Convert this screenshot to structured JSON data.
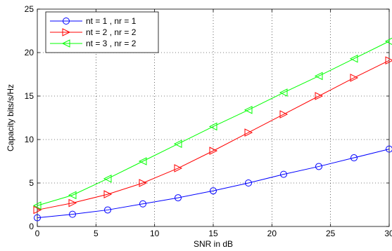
{
  "chart_data": {
    "type": "line",
    "title": "",
    "xlabel": "SNR in dB",
    "ylabel": "Capacity bits/s/Hz",
    "xlim": [
      0,
      30
    ],
    "ylim": [
      0,
      25
    ],
    "xticks": [
      0,
      5,
      10,
      15,
      20,
      25,
      30
    ],
    "yticks": [
      0,
      5,
      10,
      15,
      20,
      25
    ],
    "grid": true,
    "legend_position": "top-left",
    "x": [
      0,
      3,
      6,
      9,
      12,
      15,
      18,
      21,
      24,
      27,
      30
    ],
    "series": [
      {
        "name": "nt = 1 , nr = 1",
        "color": "#0000ff",
        "marker": "circle",
        "values": [
          1.0,
          1.4,
          1.9,
          2.6,
          3.3,
          4.1,
          5.0,
          6.0,
          6.9,
          7.9,
          8.9
        ]
      },
      {
        "name": "nt = 2 , nr = 2",
        "color": "#ff0000",
        "marker": "triangle-right",
        "values": [
          1.9,
          2.7,
          3.7,
          5.0,
          6.7,
          8.7,
          10.8,
          12.9,
          15.0,
          17.1,
          19.1
        ]
      },
      {
        "name": "nt = 3 , nr = 2",
        "color": "#00ff00",
        "marker": "triangle-left",
        "values": [
          2.4,
          3.6,
          5.5,
          7.5,
          9.5,
          11.5,
          13.4,
          15.4,
          17.3,
          19.3,
          21.3
        ]
      }
    ]
  }
}
